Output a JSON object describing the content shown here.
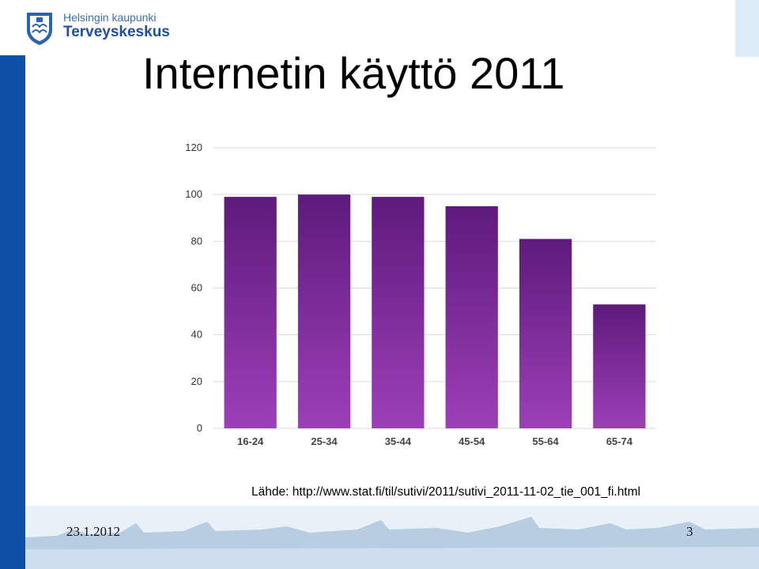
{
  "header": {
    "org_line1": "Helsingin kaupunki",
    "org_line2": "Terveyskeskus",
    "title": "Internetin käyttö 2011"
  },
  "chart_data": {
    "type": "bar",
    "categories": [
      "16-24",
      "25-34",
      "35-44",
      "45-54",
      "55-64",
      "65-74"
    ],
    "values": [
      99,
      100,
      99,
      95,
      81,
      53
    ],
    "ylim": [
      0,
      120
    ],
    "yticks": [
      0,
      20,
      40,
      60,
      80,
      100,
      120
    ],
    "title": "",
    "xlabel": "",
    "ylabel": "",
    "grid": true,
    "bar_color": "#7e2a9a"
  },
  "source": {
    "text": "Lähde: http://www.stat.fi/til/sutivi/2011/sutivi_2011-11-02_tie_001_fi.html"
  },
  "footer": {
    "date": "23.1.2012",
    "page_number": "3"
  },
  "colors": {
    "brand_blue": "#0f4fa6",
    "bar_top": "#5e1a7c",
    "bar_bottom": "#9d3fb8"
  }
}
